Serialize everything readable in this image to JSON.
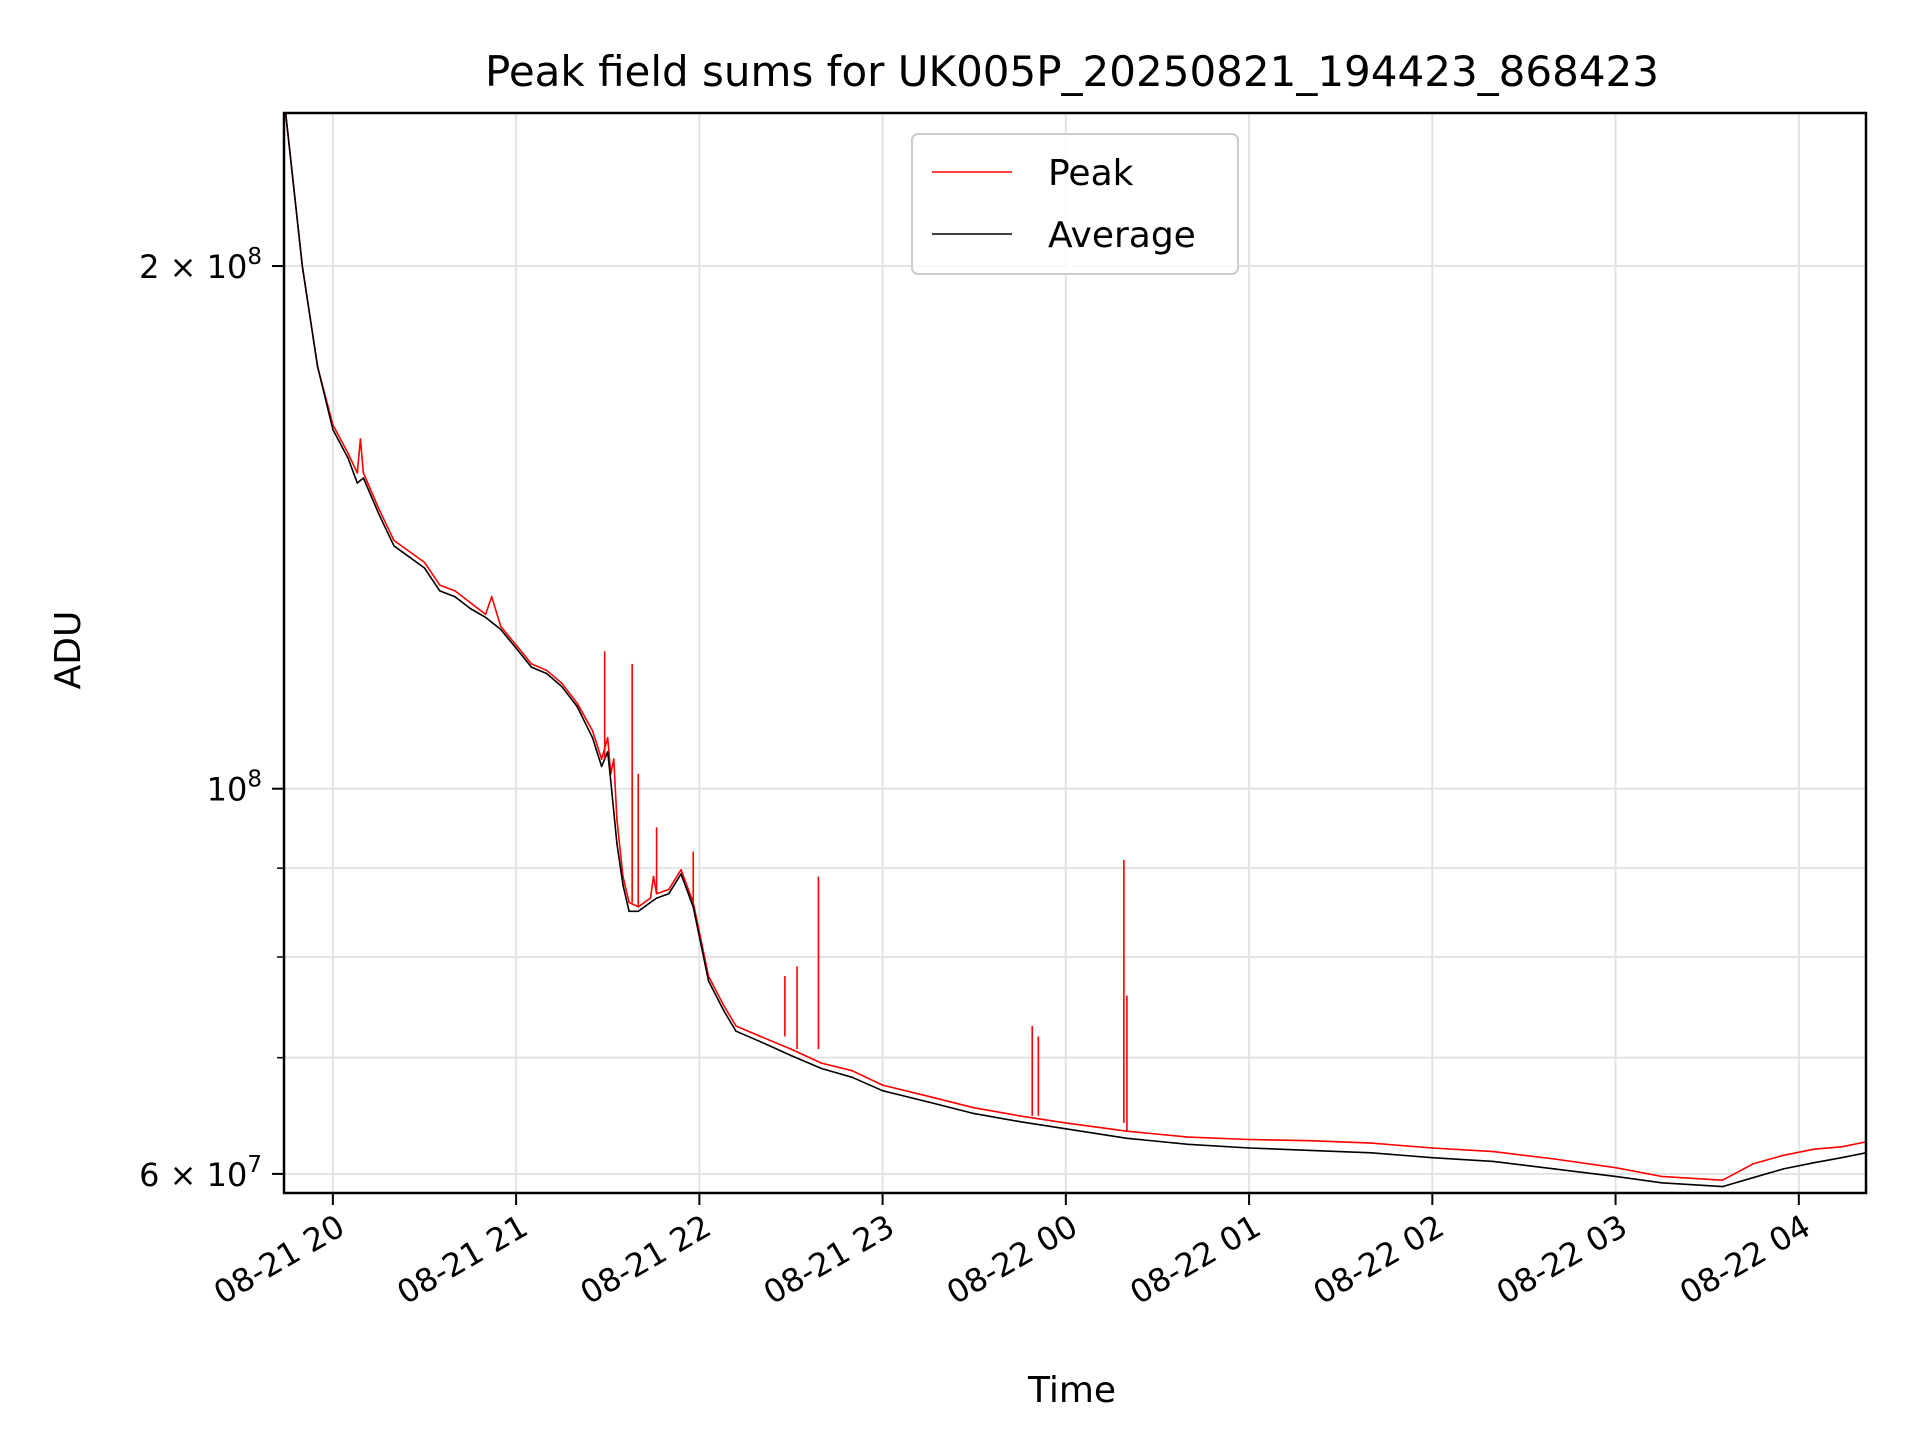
{
  "chart_data": {
    "type": "line",
    "title": "Peak field sums for UK005P_20250821_194423_868423",
    "xlabel": "Time",
    "ylabel": "ADU",
    "y_scale": "log",
    "ylim": [
      58500000,
      245000000
    ],
    "xlim": [
      "2025-08-21 19:44",
      "2025-08-22 04:22"
    ],
    "x_ticks": [
      {
        "value": "2025-08-21 20:00",
        "label": "08-21 20"
      },
      {
        "value": "2025-08-21 21:00",
        "label": "08-21 21"
      },
      {
        "value": "2025-08-21 22:00",
        "label": "08-21 22"
      },
      {
        "value": "2025-08-21 23:00",
        "label": "08-21 23"
      },
      {
        "value": "2025-08-22 00:00",
        "label": "08-22 00"
      },
      {
        "value": "2025-08-22 01:00",
        "label": "08-22 01"
      },
      {
        "value": "2025-08-22 02:00",
        "label": "08-22 02"
      },
      {
        "value": "2025-08-22 03:00",
        "label": "08-22 03"
      },
      {
        "value": "2025-08-22 04:00",
        "label": "08-22 04"
      }
    ],
    "y_major_ticks": [
      {
        "value": 60000000,
        "base": "6 × 10",
        "exp": "7"
      },
      {
        "value": 100000000,
        "base": "10",
        "exp": "8"
      },
      {
        "value": 200000000,
        "base": "2 × 10",
        "exp": "8"
      }
    ],
    "y_minor_gridlines": [
      70000000,
      80000000,
      90000000
    ],
    "grid": true,
    "legend_position": "top-center",
    "series": [
      {
        "name": "Peak",
        "color": "#ff0000",
        "points": [
          [
            "2025-08-21 19:44",
            250000000
          ],
          [
            "2025-08-21 19:50",
            200000000
          ],
          [
            "2025-08-21 19:55",
            175000000
          ],
          [
            "2025-08-21 20:00",
            162000000
          ],
          [
            "2025-08-21 20:05",
            156000000
          ],
          [
            "2025-08-21 20:08",
            152000000
          ],
          [
            "2025-08-21 20:09",
            159000000
          ],
          [
            "2025-08-21 20:10",
            152000000
          ],
          [
            "2025-08-21 20:15",
            145000000
          ],
          [
            "2025-08-21 20:20",
            139000000
          ],
          [
            "2025-08-21 20:30",
            135000000
          ],
          [
            "2025-08-21 20:35",
            131000000
          ],
          [
            "2025-08-21 20:40",
            130000000
          ],
          [
            "2025-08-21 20:45",
            128000000
          ],
          [
            "2025-08-21 20:50",
            126000000
          ],
          [
            "2025-08-21 20:52",
            129000000
          ],
          [
            "2025-08-21 20:55",
            124000000
          ],
          [
            "2025-08-21 21:00",
            121000000
          ],
          [
            "2025-08-21 21:05",
            118000000
          ],
          [
            "2025-08-21 21:10",
            117000000
          ],
          [
            "2025-08-21 21:15",
            115000000
          ],
          [
            "2025-08-21 21:20",
            112000000
          ],
          [
            "2025-08-21 21:25",
            108000000
          ],
          [
            "2025-08-21 21:28",
            104000000
          ],
          [
            "2025-08-21 21:30",
            107000000
          ],
          [
            "2025-08-21 21:31",
            102000000
          ],
          [
            "2025-08-21 21:32",
            104000000
          ],
          [
            "2025-08-21 21:33",
            96000000
          ],
          [
            "2025-08-21 21:35",
            89000000
          ],
          [
            "2025-08-21 21:37",
            86000000
          ],
          [
            "2025-08-21 21:40",
            85500000
          ],
          [
            "2025-08-21 21:44",
            86500000
          ],
          [
            "2025-08-21 21:45",
            89000000
          ],
          [
            "2025-08-21 21:46",
            87000000
          ],
          [
            "2025-08-21 21:50",
            87500000
          ],
          [
            "2025-08-21 21:54",
            89800000
          ],
          [
            "2025-08-21 21:58",
            86000000
          ],
          [
            "2025-08-21 22:03",
            78000000
          ],
          [
            "2025-08-21 22:08",
            75000000
          ],
          [
            "2025-08-21 22:12",
            73000000
          ],
          [
            "2025-08-21 22:20",
            72000000
          ],
          [
            "2025-08-21 22:30",
            70800000
          ],
          [
            "2025-08-21 22:40",
            69500000
          ],
          [
            "2025-08-21 22:50",
            68800000
          ],
          [
            "2025-08-21 23:00",
            67500000
          ],
          [
            "2025-08-21 23:15",
            66500000
          ],
          [
            "2025-08-21 23:30",
            65500000
          ],
          [
            "2025-08-21 23:45",
            64800000
          ],
          [
            "2025-08-22 00:00",
            64200000
          ],
          [
            "2025-08-22 00:20",
            63500000
          ],
          [
            "2025-08-22 00:40",
            63000000
          ],
          [
            "2025-08-22 01:00",
            62800000
          ],
          [
            "2025-08-22 01:20",
            62700000
          ],
          [
            "2025-08-22 01:40",
            62500000
          ],
          [
            "2025-08-22 02:00",
            62100000
          ],
          [
            "2025-08-22 02:20",
            61800000
          ],
          [
            "2025-08-22 02:40",
            61200000
          ],
          [
            "2025-08-22 03:00",
            60500000
          ],
          [
            "2025-08-22 03:15",
            59800000
          ],
          [
            "2025-08-22 03:35",
            59500000
          ],
          [
            "2025-08-22 03:45",
            60800000
          ],
          [
            "2025-08-22 03:55",
            61500000
          ],
          [
            "2025-08-22 04:05",
            62000000
          ],
          [
            "2025-08-22 04:14",
            62200000
          ],
          [
            "2025-08-22 04:22",
            62600000
          ]
        ]
      },
      {
        "name": "Average",
        "color": "#000000",
        "points": [
          [
            "2025-08-21 19:44",
            250000000
          ],
          [
            "2025-08-21 19:50",
            200000000
          ],
          [
            "2025-08-21 19:55",
            175000000
          ],
          [
            "2025-08-21 20:00",
            161000000
          ],
          [
            "2025-08-21 20:05",
            155000000
          ],
          [
            "2025-08-21 20:08",
            150000000
          ],
          [
            "2025-08-21 20:10",
            151000000
          ],
          [
            "2025-08-21 20:15",
            144000000
          ],
          [
            "2025-08-21 20:20",
            138000000
          ],
          [
            "2025-08-21 20:30",
            134000000
          ],
          [
            "2025-08-21 20:35",
            130000000
          ],
          [
            "2025-08-21 20:40",
            129000000
          ],
          [
            "2025-08-21 20:45",
            127000000
          ],
          [
            "2025-08-21 20:50",
            125500000
          ],
          [
            "2025-08-21 20:55",
            123500000
          ],
          [
            "2025-08-21 21:00",
            120500000
          ],
          [
            "2025-08-21 21:05",
            117500000
          ],
          [
            "2025-08-21 21:10",
            116500000
          ],
          [
            "2025-08-21 21:15",
            114500000
          ],
          [
            "2025-08-21 21:20",
            111500000
          ],
          [
            "2025-08-21 21:25",
            107000000
          ],
          [
            "2025-08-21 21:28",
            103000000
          ],
          [
            "2025-08-21 21:30",
            105000000
          ],
          [
            "2025-08-21 21:31",
            101000000
          ],
          [
            "2025-08-21 21:33",
            93000000
          ],
          [
            "2025-08-21 21:35",
            88000000
          ],
          [
            "2025-08-21 21:37",
            85000000
          ],
          [
            "2025-08-21 21:40",
            85000000
          ],
          [
            "2025-08-21 21:44",
            86000000
          ],
          [
            "2025-08-21 21:46",
            86500000
          ],
          [
            "2025-08-21 21:50",
            87000000
          ],
          [
            "2025-08-21 21:54",
            89300000
          ],
          [
            "2025-08-21 21:58",
            85500000
          ],
          [
            "2025-08-21 22:03",
            77500000
          ],
          [
            "2025-08-21 22:08",
            74500000
          ],
          [
            "2025-08-21 22:12",
            72500000
          ],
          [
            "2025-08-21 22:20",
            71500000
          ],
          [
            "2025-08-21 22:30",
            70200000
          ],
          [
            "2025-08-21 22:40",
            69000000
          ],
          [
            "2025-08-21 22:50",
            68200000
          ],
          [
            "2025-08-21 23:00",
            67000000
          ],
          [
            "2025-08-21 23:15",
            66000000
          ],
          [
            "2025-08-21 23:30",
            65000000
          ],
          [
            "2025-08-21 23:45",
            64300000
          ],
          [
            "2025-08-22 00:00",
            63700000
          ],
          [
            "2025-08-22 00:20",
            62900000
          ],
          [
            "2025-08-22 00:40",
            62400000
          ],
          [
            "2025-08-22 01:00",
            62100000
          ],
          [
            "2025-08-22 01:20",
            61900000
          ],
          [
            "2025-08-22 01:40",
            61700000
          ],
          [
            "2025-08-22 02:00",
            61300000
          ],
          [
            "2025-08-22 02:20",
            61000000
          ],
          [
            "2025-08-22 02:40",
            60400000
          ],
          [
            "2025-08-22 03:00",
            59800000
          ],
          [
            "2025-08-22 03:15",
            59300000
          ],
          [
            "2025-08-22 03:35",
            59000000
          ],
          [
            "2025-08-22 03:45",
            59700000
          ],
          [
            "2025-08-22 03:55",
            60400000
          ],
          [
            "2025-08-22 04:05",
            60900000
          ],
          [
            "2025-08-22 04:14",
            61300000
          ],
          [
            "2025-08-22 04:22",
            61700000
          ]
        ]
      }
    ],
    "annotations": [
      {
        "series": "Peak",
        "x": "2025-08-21 21:29",
        "y": 120000000
      },
      {
        "series": "Peak",
        "x": "2025-08-21 21:38",
        "y": 118000000
      },
      {
        "series": "Peak",
        "x": "2025-08-21 21:40",
        "y": 102000000
      },
      {
        "series": "Peak",
        "x": "2025-08-21 21:46",
        "y": 95000000
      },
      {
        "series": "Peak",
        "x": "2025-08-21 21:58",
        "y": 92000000
      },
      {
        "series": "Peak",
        "x": "2025-08-21 22:28",
        "y": 78000000
      },
      {
        "series": "Peak",
        "x": "2025-08-21 22:32",
        "y": 79000000
      },
      {
        "series": "Peak",
        "x": "2025-08-21 22:39",
        "y": 89000000
      },
      {
        "series": "Peak",
        "x": "2025-08-21 23:49",
        "y": 73000000
      },
      {
        "series": "Peak",
        "x": "2025-08-21 23:51",
        "y": 72000000
      },
      {
        "series": "Peak",
        "x": "2025-08-22 00:19",
        "y": 91000000
      },
      {
        "series": "Peak",
        "x": "2025-08-22 00:20",
        "y": 76000000
      }
    ]
  }
}
